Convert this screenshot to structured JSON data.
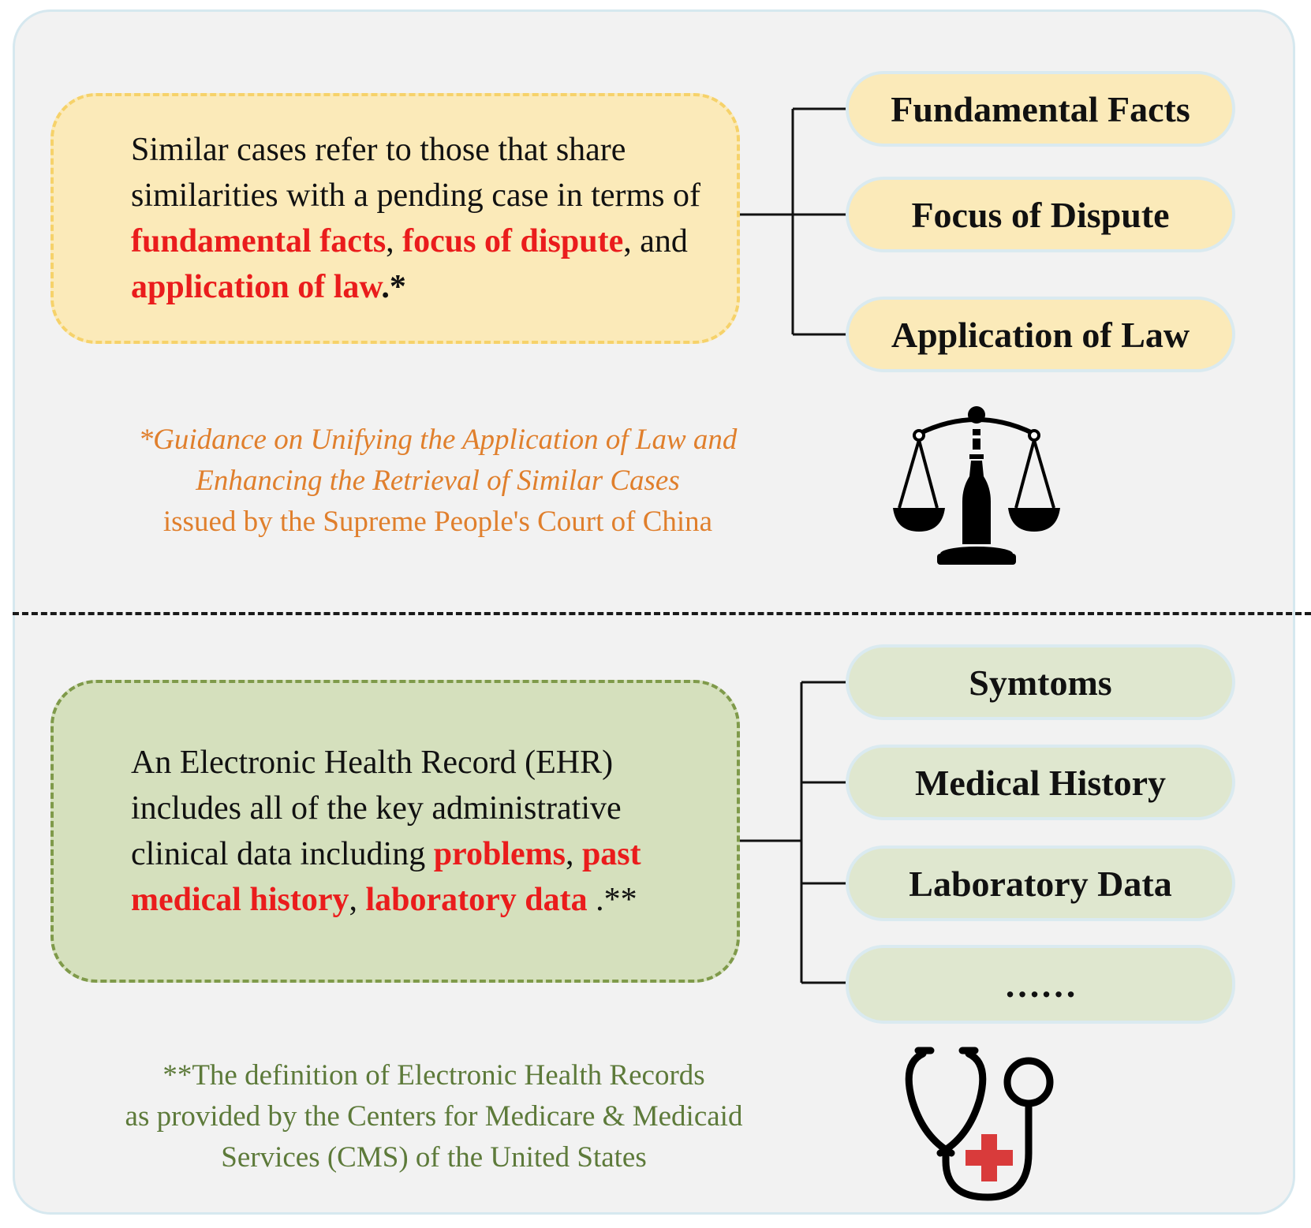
{
  "law_section": {
    "definition": {
      "t1": "Similar cases refer to those that share similarities with a pending case in terms of ",
      "h1": "fundamental facts",
      "t2": ", ",
      "h2": "focus of dispute",
      "t3": ", and ",
      "h3": "application of law",
      "t4": ".*"
    },
    "items": [
      "Fundamental Facts",
      "Focus of Dispute",
      "Application of Law"
    ],
    "note": {
      "line1": "*Guidance on Unifying the Application of Law and",
      "line2": "Enhancing the Retrieval of Similar Cases",
      "line3": "issued by the Supreme People's Court of China"
    },
    "icon": "scales-of-justice-icon"
  },
  "ehr_section": {
    "definition": {
      "t1": "An Electronic Health Record (EHR) includes all of the key administrative clinical data including  ",
      "h1": "problems",
      "t2": ", ",
      "h2": "past medical history",
      "t3": ", ",
      "h3": "laboratory data",
      "t4": " .**"
    },
    "items": [
      "Symtoms",
      "Medical History",
      "Laboratory Data",
      "……"
    ],
    "note": {
      "line1": "**The definition of Electronic Health Records",
      "line2": "as provided by the Centers for Medicare & Medicaid",
      "line3": "Services (CMS) of the United States"
    },
    "icon": "stethoscope-icon"
  },
  "colors": {
    "highlight": "#ea1c1c",
    "law_fill": "#fbeab9",
    "law_border": "#f6d26a",
    "ehr_fill": "#d5e0bd",
    "ehr_border": "#7f9a4a",
    "law_note": "#e07f2c",
    "ehr_note": "#5d7a3a",
    "cross": "#d93b3b"
  }
}
